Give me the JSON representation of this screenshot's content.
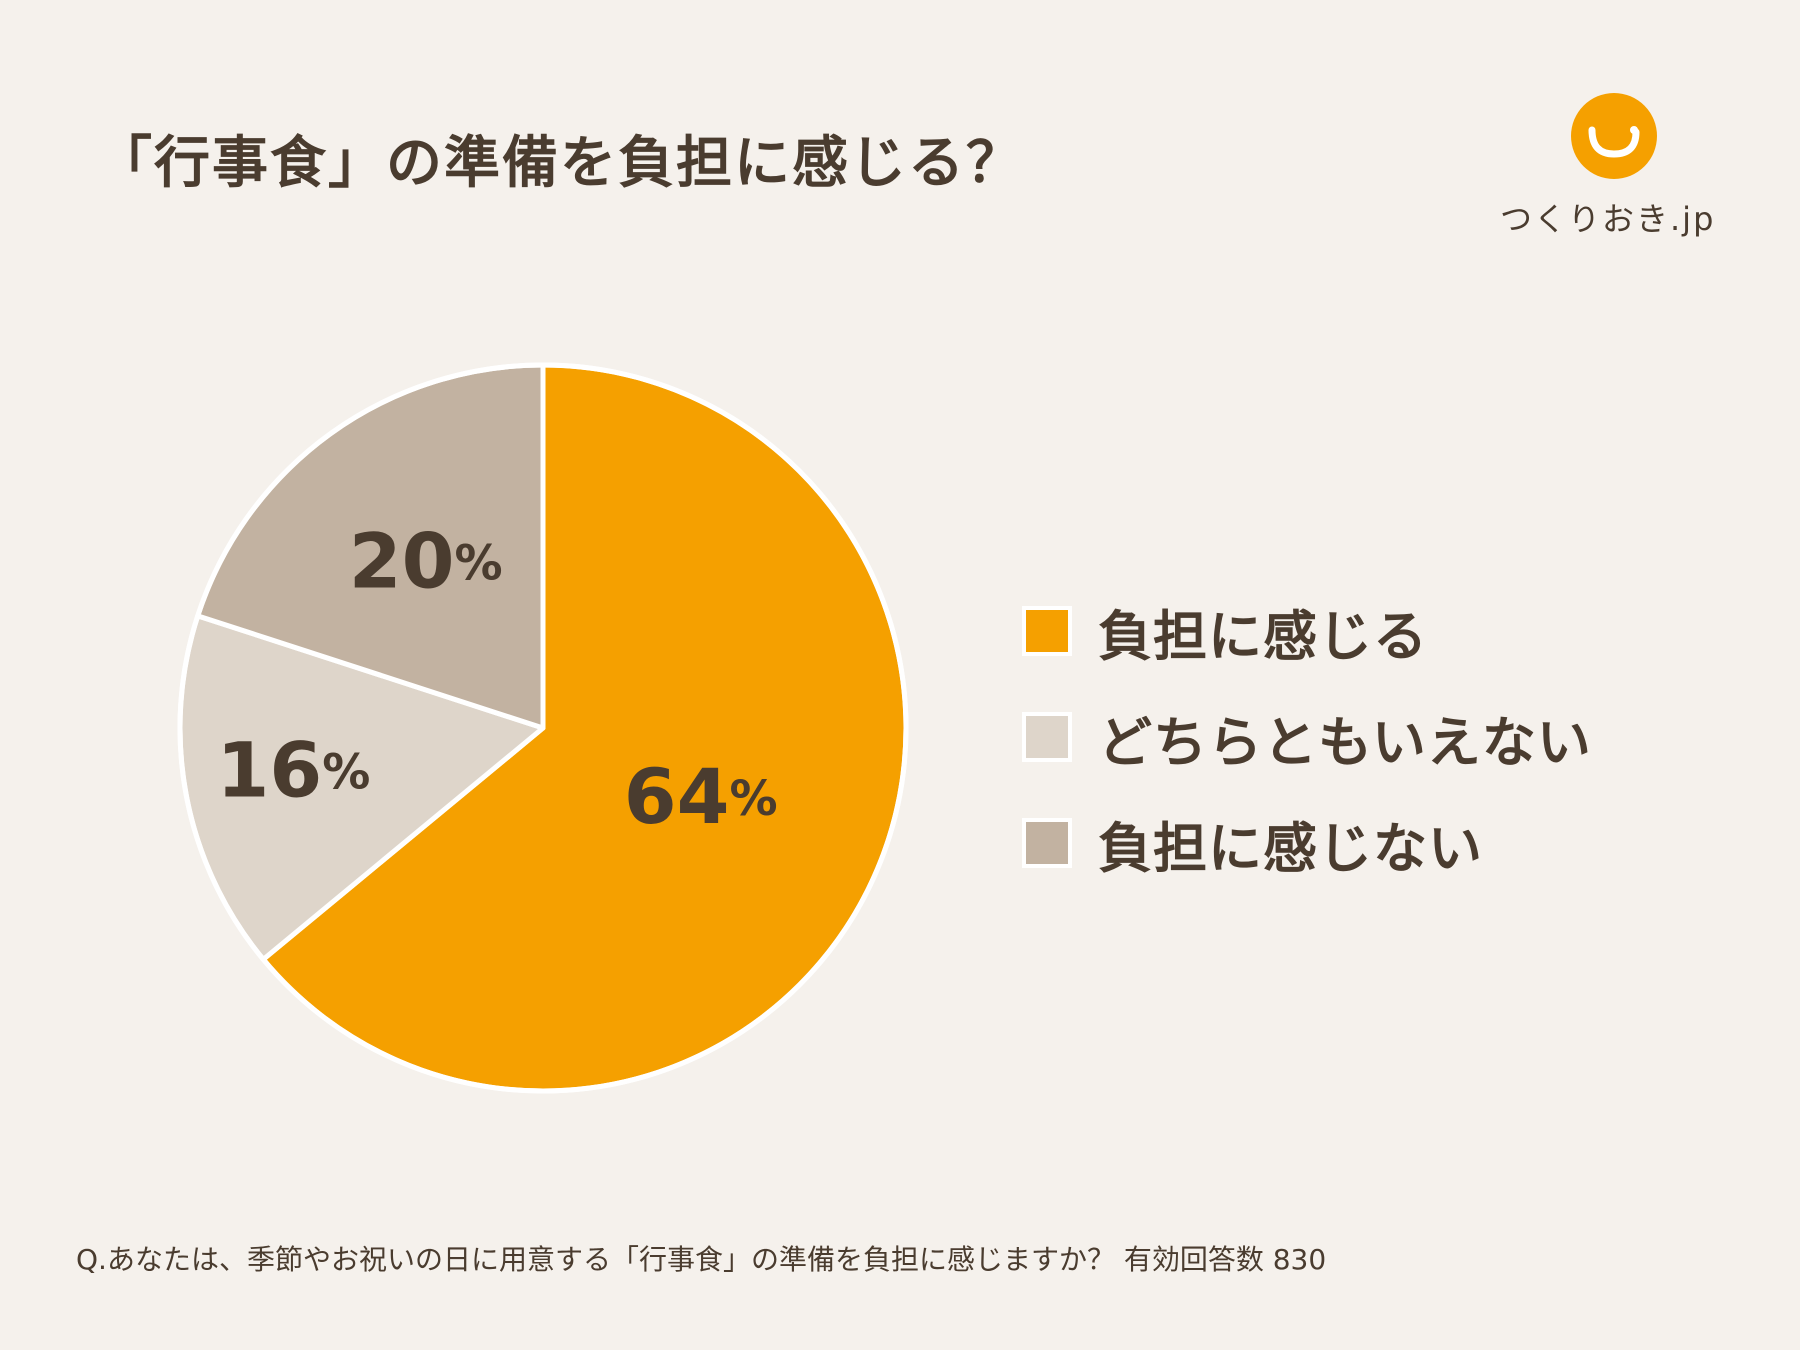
{
  "title": "「行事食」の準備を負担に感じる？",
  "logo": {
    "text": "つくりおき.jp",
    "color": "#f5a000"
  },
  "chart_data": {
    "type": "pie",
    "title": "「行事食」の準備を負担に感じる？",
    "slices": [
      {
        "label": "負担に感じる",
        "value": 64,
        "display": "64",
        "color": "#f5a000"
      },
      {
        "label": "どちらともいえない",
        "value": 16,
        "display": "16",
        "color": "#ded5ca"
      },
      {
        "label": "負担に感じない",
        "value": 20,
        "display": "20",
        "color": "#c2b2a1"
      }
    ],
    "unit": "%",
    "start": "12 o'clock",
    "direction": "clockwise",
    "legend_position": "right"
  },
  "footnote": "Q.あなたは、季節やお祝いの日に用意する「行事食」の準備を負担に感じますか？ 有効回答数 830"
}
